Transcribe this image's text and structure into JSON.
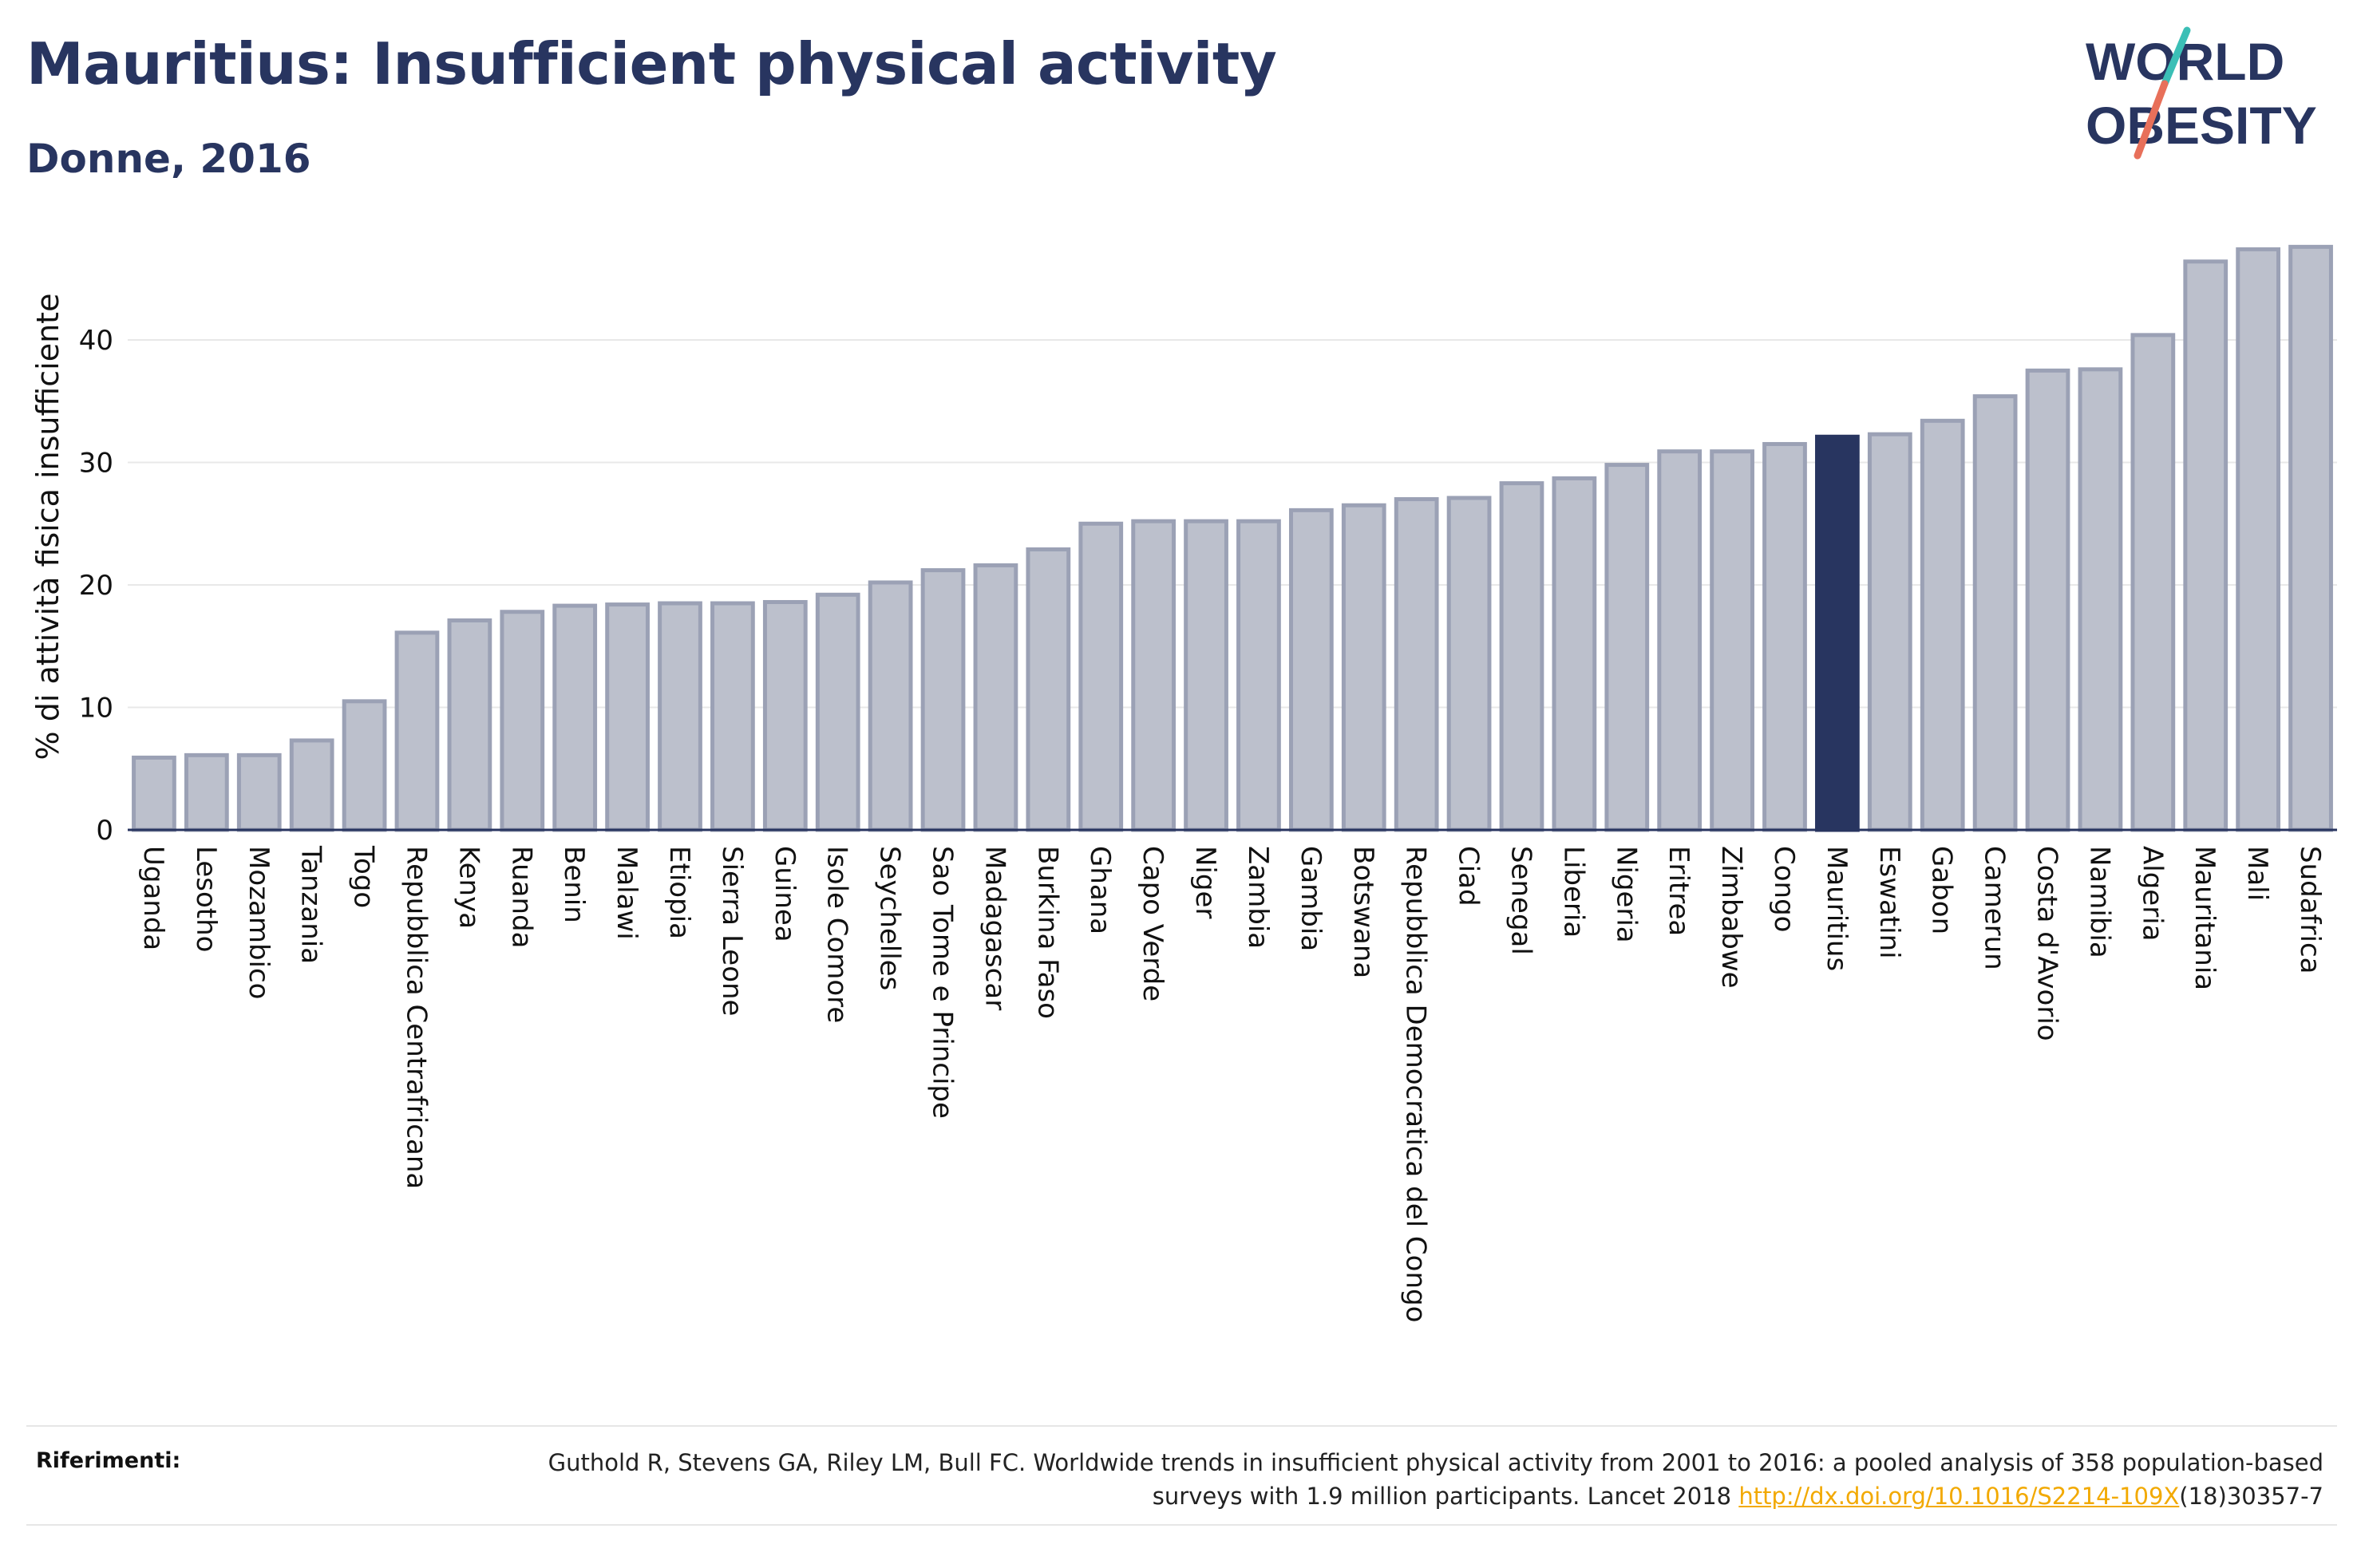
{
  "header": {
    "title": "Mauritius: Insufficient physical activity",
    "subtitle": "Donne, 2016"
  },
  "logo": {
    "line1": "WORLD",
    "line2": "OBESITY",
    "slash_colors": [
      "#3bbfb6",
      "#e8705a"
    ]
  },
  "colors": {
    "bar_fill": "#bcc0cc",
    "bar_stroke": "#9ba1b5",
    "highlight": "#283560",
    "gridline": "#e8e8e8",
    "axis": "#283560",
    "link": "#f2a900"
  },
  "references": {
    "label": "Riferimenti:",
    "text_before_link": "Guthold R, Stevens GA, Riley LM, Bull FC. Worldwide trends in insufficient physical activity from 2001 to 2016: a pooled analysis of 358 population-based surveys with 1.9 million participants. Lancet 2018 ",
    "link_text": "http://dx.doi.org/10.1016/S2214-109X",
    "text_after_link": "(18)30357-7"
  },
  "chart_data": {
    "type": "bar",
    "title": "Mauritius: Insufficient physical activity",
    "subtitle": "Donne, 2016",
    "xlabel": "",
    "ylabel": "% di attività fisica insufficiente",
    "ylim": [
      0,
      48
    ],
    "yticks": [
      0,
      10,
      20,
      30,
      40
    ],
    "grid": true,
    "highlight": "Mauritius",
    "categories": [
      "Uganda",
      "Lesotho",
      "Mozambico",
      "Tanzania",
      "Togo",
      "Repubblica Centrafricana",
      "Kenya",
      "Ruanda",
      "Benin",
      "Malawi",
      "Etiopia",
      "Sierra Leone",
      "Guinea",
      "Isole Comore",
      "Seychelles",
      "Sao Tome e Principe",
      "Madagascar",
      "Burkina Faso",
      "Ghana",
      "Capo Verde",
      "Niger",
      "Zambia",
      "Gambia",
      "Botswana",
      "Repubblica Democratica del Congo",
      "Ciad",
      "Senegal",
      "Liberia",
      "Nigeria",
      "Eritrea",
      "Zimbabwe",
      "Congo",
      "Mauritius",
      "Eswatini",
      "Gabon",
      "Camerun",
      "Costa d'Avorio",
      "Namibia",
      "Algeria",
      "Mauritania",
      "Mali",
      "Sudafrica"
    ],
    "values": [
      5.9,
      6.1,
      6.1,
      7.3,
      10.5,
      16.1,
      17.1,
      17.8,
      18.3,
      18.4,
      18.5,
      18.5,
      18.6,
      19.2,
      20.2,
      21.2,
      21.6,
      22.9,
      25.0,
      25.2,
      25.2,
      25.2,
      26.1,
      26.5,
      27.0,
      27.1,
      28.3,
      28.7,
      29.8,
      30.9,
      30.9,
      31.5,
      32.1,
      32.3,
      33.4,
      35.4,
      37.5,
      37.6,
      40.4,
      46.4,
      47.4,
      47.6
    ]
  }
}
